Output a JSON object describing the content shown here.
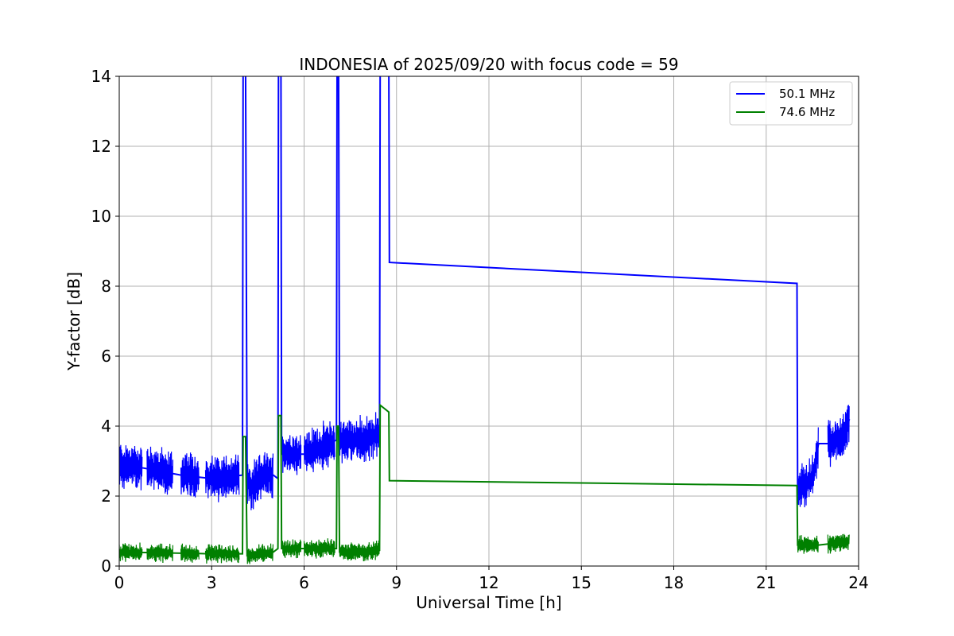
{
  "chart_data": {
    "type": "line",
    "title": "INDONESIA of 2025/09/20 with focus code = 59",
    "xlabel": "Universal Time [h]",
    "ylabel": "Y-factor [dB]",
    "xlim": [
      0,
      24
    ],
    "ylim": [
      0,
      14
    ],
    "xticks": [
      0,
      3,
      6,
      9,
      12,
      15,
      18,
      21,
      24
    ],
    "yticks": [
      0,
      2,
      4,
      6,
      8,
      10,
      12,
      14
    ],
    "grid": true,
    "legend_position": "top-right",
    "series": [
      {
        "name": "50.1 MHz",
        "color": "#0000ff",
        "noise_amplitude": 0.75,
        "points": [
          [
            0.0,
            2.9
          ],
          [
            0.8,
            2.8
          ],
          [
            2.0,
            2.6
          ],
          [
            3.0,
            2.5
          ],
          [
            4.0,
            2.6
          ],
          [
            4.02,
            14.2
          ],
          [
            4.1,
            14.2
          ],
          [
            4.15,
            2.5
          ],
          [
            4.3,
            2.2
          ],
          [
            4.6,
            2.6
          ],
          [
            5.0,
            2.6
          ],
          [
            5.15,
            2.5
          ],
          [
            5.17,
            14.2
          ],
          [
            5.25,
            14.2
          ],
          [
            5.27,
            3.2
          ],
          [
            5.8,
            3.2
          ],
          [
            6.0,
            3.2
          ],
          [
            6.8,
            3.5
          ],
          [
            7.05,
            3.6
          ],
          [
            7.07,
            14.2
          ],
          [
            7.12,
            14.2
          ],
          [
            7.15,
            3.6
          ],
          [
            8.0,
            3.6
          ],
          [
            8.45,
            3.8
          ],
          [
            8.47,
            14.2
          ],
          [
            8.75,
            14.2
          ],
          [
            8.77,
            8.68
          ],
          [
            22.0,
            8.08
          ],
          [
            22.02,
            2.2
          ],
          [
            22.5,
            2.5
          ],
          [
            22.7,
            3.5
          ],
          [
            23.1,
            3.5
          ],
          [
            23.5,
            3.7
          ],
          [
            23.7,
            4.2
          ]
        ]
      },
      {
        "name": "74.6 MHz",
        "color": "#008000",
        "noise_amplitude": 0.3,
        "points": [
          [
            0.0,
            0.4
          ],
          [
            3.0,
            0.35
          ],
          [
            4.0,
            0.35
          ],
          [
            4.02,
            3.7
          ],
          [
            4.1,
            3.7
          ],
          [
            4.15,
            0.3
          ],
          [
            5.0,
            0.4
          ],
          [
            5.15,
            0.5
          ],
          [
            5.17,
            4.3
          ],
          [
            5.25,
            4.3
          ],
          [
            5.27,
            0.5
          ],
          [
            6.0,
            0.5
          ],
          [
            7.05,
            0.5
          ],
          [
            7.07,
            4.0
          ],
          [
            7.12,
            4.0
          ],
          [
            7.15,
            0.4
          ],
          [
            8.0,
            0.4
          ],
          [
            8.45,
            0.45
          ],
          [
            8.47,
            4.6
          ],
          [
            8.75,
            4.4
          ],
          [
            8.77,
            2.44
          ],
          [
            22.0,
            2.3
          ],
          [
            22.02,
            0.6
          ],
          [
            22.5,
            0.6
          ],
          [
            22.7,
            0.6
          ],
          [
            23.7,
            0.7
          ]
        ]
      }
    ],
    "noise_segments": [
      [
        0.0,
        0.75
      ],
      [
        0.9,
        1.75
      ],
      [
        2.0,
        2.6
      ],
      [
        2.8,
        3.9
      ],
      [
        4.15,
        5.0
      ],
      [
        5.3,
        5.9
      ],
      [
        6.0,
        7.0
      ],
      [
        7.15,
        8.45
      ],
      [
        22.02,
        22.7
      ],
      [
        23.0,
        23.7
      ]
    ]
  }
}
